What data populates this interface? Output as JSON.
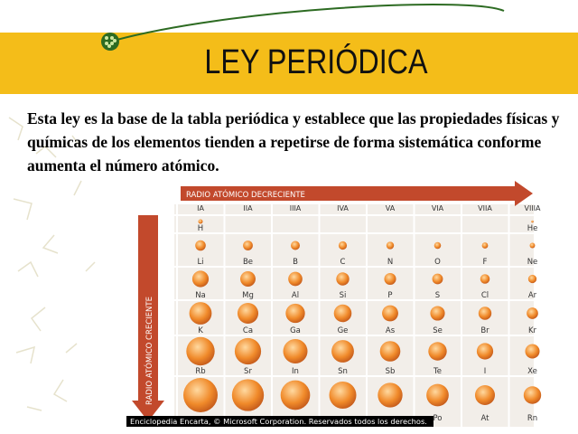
{
  "header": {
    "title": "LEY PERIÓDICA"
  },
  "body": {
    "text": "Esta ley es la base de la tabla periódica y establece que las propiedades físicas y químicas de los elementos tienden a repetirse de forma sistemática conforme aumenta el número atómico."
  },
  "figure": {
    "top_arrow": "RADIO ATÓMICO DECRECIENTE",
    "side_arrow": "RADIO ATÓMICO CRECIENTE",
    "groups": [
      "IA",
      "IIA",
      "IIIA",
      "IVA",
      "VA",
      "VIA",
      "VIIA",
      "VIIIA"
    ],
    "rows": [
      [
        "H",
        "He"
      ],
      [
        "Li",
        "Be",
        "B",
        "C",
        "N",
        "O",
        "F",
        "Ne"
      ],
      [
        "Na",
        "Mg",
        "Al",
        "Si",
        "P",
        "S",
        "Cl",
        "Ar"
      ],
      [
        "K",
        "Ca",
        "Ga",
        "Ge",
        "As",
        "Se",
        "Br",
        "Kr"
      ],
      [
        "Rb",
        "Sr",
        "In",
        "Sn",
        "Sb",
        "Te",
        "I",
        "Xe"
      ],
      [
        "Po",
        "At",
        "Rn"
      ]
    ],
    "credit": "Enciclopedia Encarta, © Microsoft Corporation. Reservados todos los derechos."
  }
}
